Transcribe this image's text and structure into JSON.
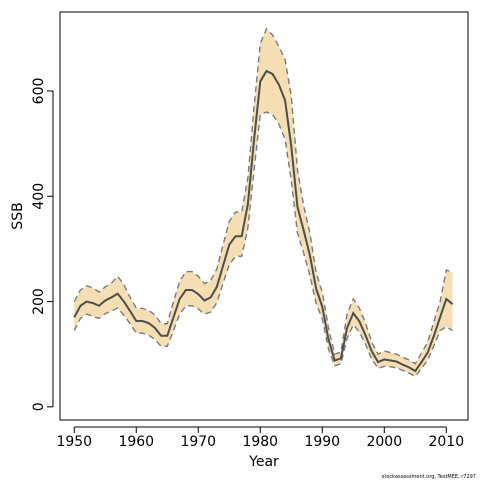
{
  "chart_data": {
    "type": "line",
    "title": "",
    "xlabel": "Year",
    "ylabel": "SSB",
    "xlim": [
      1947.7,
      2013.5
    ],
    "ylim": [
      -25,
      750
    ],
    "x_ticks": [
      1950,
      1960,
      1970,
      1980,
      1990,
      2000,
      2010
    ],
    "y_ticks": [
      0,
      200,
      400,
      600
    ],
    "grid": false,
    "legend": "none",
    "colors": {
      "band": "#f5deb3",
      "line": "#4d4d4d",
      "bounds": "#7a7a7a",
      "frame": "#000000"
    },
    "x": [
      1950,
      1951,
      1952,
      1953,
      1954,
      1955,
      1956,
      1957,
      1958,
      1959,
      1960,
      1961,
      1962,
      1963,
      1964,
      1965,
      1966,
      1967,
      1968,
      1969,
      1970,
      1971,
      1972,
      1973,
      1974,
      1975,
      1976,
      1977,
      1978,
      1979,
      1980,
      1981,
      1982,
      1983,
      1984,
      1985,
      1986,
      1987,
      1988,
      1989,
      1990,
      1991,
      1992,
      1993,
      1994,
      1995,
      1996,
      1997,
      1998,
      1999,
      2000,
      2001,
      2002,
      2003,
      2004,
      2005,
      2006,
      2007,
      2008,
      2009,
      2010,
      2011
    ],
    "series": [
      {
        "role": "estimate",
        "values": [
          170,
          192,
          200,
          197,
          192,
          202,
          208,
          215,
          200,
          182,
          163,
          163,
          159,
          150,
          135,
          135,
          170,
          205,
          222,
          222,
          214,
          202,
          208,
          228,
          268,
          308,
          324,
          324,
          385,
          508,
          618,
          638,
          632,
          612,
          582,
          495,
          380,
          335,
          288,
          225,
          190,
          128,
          88,
          92,
          150,
          178,
          162,
          135,
          105,
          85,
          90,
          88,
          86,
          80,
          75,
          68,
          85,
          103,
          135,
          170,
          205,
          195
        ]
      },
      {
        "role": "upper",
        "values": [
          200,
          222,
          230,
          226,
          218,
          228,
          235,
          248,
          232,
          208,
          188,
          187,
          183,
          175,
          158,
          158,
          200,
          238,
          257,
          257,
          248,
          234,
          240,
          262,
          308,
          352,
          370,
          370,
          435,
          570,
          690,
          718,
          706,
          684,
          660,
          590,
          450,
          382,
          330,
          255,
          218,
          150,
          100,
          104,
          176,
          205,
          187,
          158,
          122,
          100,
          106,
          103,
          100,
          94,
          89,
          82,
          102,
          123,
          162,
          200,
          260,
          255
        ]
      },
      {
        "role": "lower",
        "values": [
          145,
          168,
          176,
          172,
          168,
          177,
          182,
          188,
          174,
          158,
          140,
          140,
          136,
          128,
          115,
          115,
          145,
          176,
          192,
          192,
          186,
          176,
          180,
          198,
          235,
          270,
          286,
          286,
          340,
          450,
          555,
          560,
          555,
          537,
          508,
          430,
          330,
          292,
          250,
          197,
          167,
          110,
          78,
          82,
          130,
          156,
          142,
          118,
          90,
          73,
          77,
          76,
          74,
          69,
          64,
          58,
          73,
          89,
          116,
          145,
          152,
          145
        ]
      }
    ]
  },
  "footer": {
    "credit": "stockassessment.org, TestMEE, r7297"
  }
}
